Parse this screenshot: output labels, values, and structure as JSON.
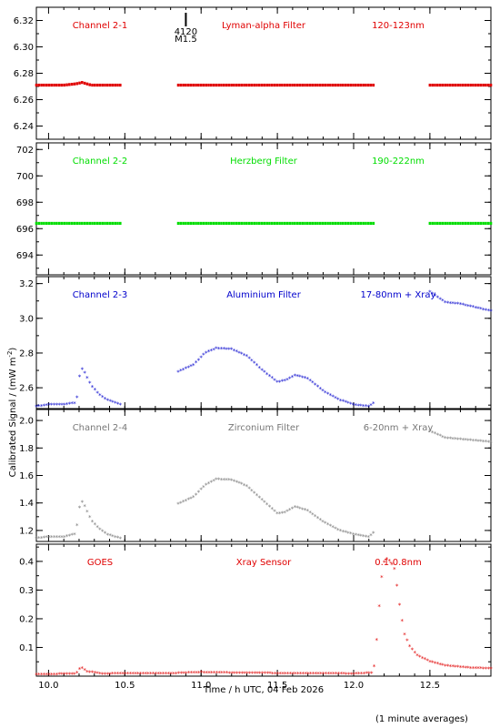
{
  "chart_data": {
    "type": "scatter",
    "xlabel": "Time / h UTC, 04 Feb 2026",
    "ylabel": "Calibrated Signal / (mW m",
    "ylabel_sup": "-2",
    "ylabel_tail": ")",
    "footnote": "(1 minute averages)",
    "xlim": [
      9.92,
      12.9
    ],
    "xticks": [
      10.0,
      10.5,
      11.0,
      11.5,
      12.0,
      12.5
    ],
    "xtick_labels": [
      "10.0",
      "10.5",
      "11.0",
      "11.5",
      "12.0",
      "12.5"
    ],
    "flare_marker": {
      "x": 10.9,
      "label1": "4120",
      "label2": "M1.5"
    },
    "panels": [
      {
        "id": "ch21",
        "channel": "Channel 2-1",
        "filter": "Lyman-alpha Filter",
        "band": "120-123nm",
        "color": "#e00000",
        "marker": "dot",
        "ylim": [
          6.23,
          6.33
        ],
        "yticks": [
          6.24,
          6.26,
          6.28,
          6.3,
          6.32
        ],
        "ytick_labels": [
          "6.24",
          "6.26",
          "6.28",
          "6.30",
          "6.32"
        ],
        "segments": [
          {
            "x0": 9.92,
            "x1": 10.47,
            "points": [
              [
                9.92,
                6.271
              ],
              [
                10.1,
                6.271
              ],
              [
                10.18,
                6.272
              ],
              [
                10.22,
                6.273
              ],
              [
                10.28,
                6.271
              ],
              [
                10.47,
                6.271
              ]
            ]
          },
          {
            "x0": 10.85,
            "x1": 12.13,
            "points": [
              [
                10.85,
                6.271
              ],
              [
                11.5,
                6.271
              ],
              [
                12.13,
                6.271
              ]
            ]
          },
          {
            "x0": 12.5,
            "x1": 12.9,
            "points": [
              [
                12.5,
                6.271
              ],
              [
                12.9,
                6.271
              ]
            ]
          }
        ]
      },
      {
        "id": "ch22",
        "channel": "Channel 2-2",
        "filter": "Herzberg Filter",
        "band": "190-222nm",
        "color": "#00dd00",
        "marker": "dot",
        "ylim": [
          692.5,
          702.5
        ],
        "yticks": [
          694,
          696,
          698,
          700,
          702
        ],
        "ytick_labels": [
          "694",
          "696",
          "698",
          "700",
          "702"
        ],
        "segments": [
          {
            "x0": 9.92,
            "x1": 10.47,
            "points": [
              [
                9.92,
                696.4
              ],
              [
                10.47,
                696.4
              ]
            ]
          },
          {
            "x0": 10.85,
            "x1": 12.13,
            "points": [
              [
                10.85,
                696.4
              ],
              [
                12.13,
                696.4
              ]
            ]
          },
          {
            "x0": 12.5,
            "x1": 12.9,
            "points": [
              [
                12.5,
                696.4
              ],
              [
                12.9,
                696.4
              ]
            ]
          }
        ]
      },
      {
        "id": "ch23",
        "channel": "Channel 2-3",
        "filter": "Aluminium Filter",
        "band": "17-80nm + Xray",
        "color": "#0000cc",
        "marker": "star",
        "ylim": [
          2.48,
          3.24
        ],
        "yticks": [
          2.6,
          2.8,
          3.0,
          3.2
        ],
        "ytick_labels": [
          "2.6",
          "2.8",
          "3.0",
          "3.2"
        ],
        "segments": [
          {
            "x0": 9.92,
            "x1": 10.47,
            "points": [
              [
                9.92,
                2.49
              ],
              [
                10.0,
                2.5
              ],
              [
                10.1,
                2.5
              ],
              [
                10.17,
                2.51
              ],
              [
                10.19,
                2.55
              ],
              [
                10.21,
                2.72
              ],
              [
                10.24,
                2.68
              ],
              [
                10.28,
                2.61
              ],
              [
                10.33,
                2.56
              ],
              [
                10.38,
                2.53
              ],
              [
                10.47,
                2.5
              ]
            ]
          },
          {
            "x0": 10.85,
            "x1": 12.13,
            "points": [
              [
                10.85,
                2.69
              ],
              [
                10.95,
                2.73
              ],
              [
                11.03,
                2.8
              ],
              [
                11.1,
                2.825
              ],
              [
                11.2,
                2.82
              ],
              [
                11.3,
                2.78
              ],
              [
                11.4,
                2.7
              ],
              [
                11.5,
                2.63
              ],
              [
                11.55,
                2.64
              ],
              [
                11.62,
                2.67
              ],
              [
                11.7,
                2.65
              ],
              [
                11.8,
                2.58
              ],
              [
                11.9,
                2.53
              ],
              [
                12.0,
                2.5
              ],
              [
                12.1,
                2.49
              ],
              [
                12.13,
                2.51
              ]
            ]
          },
          {
            "x0": 12.5,
            "x1": 12.9,
            "points": [
              [
                12.5,
                3.15
              ],
              [
                12.6,
                3.09
              ],
              [
                12.7,
                3.08
              ],
              [
                12.8,
                3.06
              ],
              [
                12.9,
                3.04
              ]
            ]
          }
        ]
      },
      {
        "id": "ch24",
        "channel": "Channel 2-4",
        "filter": "Zirconium Filter",
        "band": "6-20nm + Xray",
        "color": "#777777",
        "marker": "star",
        "ylim": [
          1.12,
          2.08
        ],
        "yticks": [
          1.2,
          1.4,
          1.6,
          1.8,
          2.0
        ],
        "ytick_labels": [
          "1.2",
          "1.4",
          "1.6",
          "1.8",
          "2.0"
        ],
        "segments": [
          {
            "x0": 9.92,
            "x1": 10.47,
            "points": [
              [
                9.92,
                1.14
              ],
              [
                10.0,
                1.15
              ],
              [
                10.1,
                1.15
              ],
              [
                10.17,
                1.17
              ],
              [
                10.19,
                1.25
              ],
              [
                10.21,
                1.42
              ],
              [
                10.24,
                1.37
              ],
              [
                10.28,
                1.27
              ],
              [
                10.33,
                1.21
              ],
              [
                10.38,
                1.17
              ],
              [
                10.47,
                1.14
              ]
            ]
          },
          {
            "x0": 10.85,
            "x1": 12.13,
            "points": [
              [
                10.85,
                1.39
              ],
              [
                10.95,
                1.44
              ],
              [
                11.03,
                1.53
              ],
              [
                11.1,
                1.57
              ],
              [
                11.2,
                1.565
              ],
              [
                11.3,
                1.52
              ],
              [
                11.4,
                1.42
              ],
              [
                11.5,
                1.32
              ],
              [
                11.55,
                1.33
              ],
              [
                11.62,
                1.37
              ],
              [
                11.7,
                1.34
              ],
              [
                11.8,
                1.26
              ],
              [
                11.9,
                1.2
              ],
              [
                12.0,
                1.17
              ],
              [
                12.1,
                1.15
              ],
              [
                12.13,
                1.18
              ]
            ]
          },
          {
            "x0": 12.5,
            "x1": 12.9,
            "points": [
              [
                12.5,
                1.92
              ],
              [
                12.6,
                1.87
              ],
              [
                12.7,
                1.86
              ],
              [
                12.8,
                1.85
              ],
              [
                12.9,
                1.84
              ]
            ]
          }
        ]
      },
      {
        "id": "goes",
        "channel": "GOES",
        "filter": "Xray Sensor",
        "band": "0.1-0.8nm",
        "color": "#e00000",
        "marker": "star",
        "ylim": [
          0,
          0.46
        ],
        "yticks": [
          0.1,
          0.2,
          0.3,
          0.4
        ],
        "ytick_labels": [
          "0.1",
          "0.2",
          "0.3",
          "0.4"
        ],
        "segments": [
          {
            "x0": 9.92,
            "x1": 12.9,
            "points": [
              [
                9.92,
                0.005
              ],
              [
                10.18,
                0.006
              ],
              [
                10.21,
                0.03
              ],
              [
                10.25,
                0.015
              ],
              [
                10.35,
                0.007
              ],
              [
                10.8,
                0.008
              ],
              [
                11.0,
                0.012
              ],
              [
                11.2,
                0.01
              ],
              [
                11.6,
                0.008
              ],
              [
                12.0,
                0.007
              ],
              [
                12.13,
                0.01
              ],
              [
                12.15,
                0.12
              ],
              [
                12.17,
                0.26
              ],
              [
                12.19,
                0.38
              ],
              [
                12.21,
                0.41
              ],
              [
                12.24,
                0.4
              ],
              [
                12.27,
                0.37
              ],
              [
                12.3,
                0.25
              ],
              [
                12.33,
                0.15
              ],
              [
                12.37,
                0.1
              ],
              [
                12.42,
                0.07
              ],
              [
                12.5,
                0.05
              ],
              [
                12.6,
                0.035
              ],
              [
                12.75,
                0.028
              ],
              [
                12.9,
                0.025
              ]
            ]
          }
        ]
      }
    ]
  }
}
